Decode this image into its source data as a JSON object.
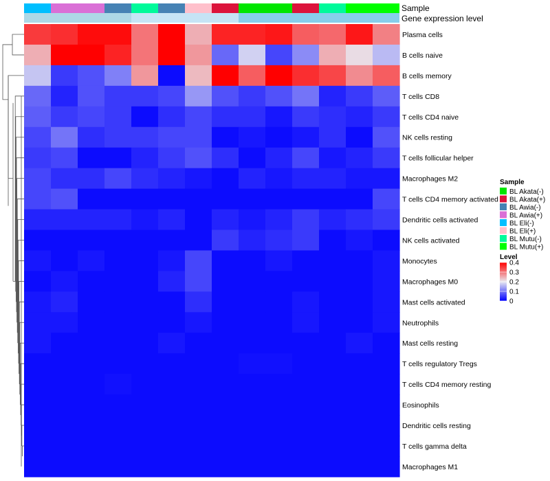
{
  "chart_data": {
    "type": "heatmap",
    "annotation_labels": {
      "sample": "Sample",
      "gene_expression": "Gene expression level"
    },
    "columns": [
      {
        "sample": "BL Eli(-)",
        "expression": "high"
      },
      {
        "sample": "BL Awia(+)",
        "expression": "high"
      },
      {
        "sample": "BL Awia(+)",
        "expression": "high"
      },
      {
        "sample": "BL Awia(-)",
        "expression": "high"
      },
      {
        "sample": "BL Mutu(-)",
        "expression": "low"
      },
      {
        "sample": "BL Awia(-)",
        "expression": "low"
      },
      {
        "sample": "BL Eli(+)",
        "expression": "low"
      },
      {
        "sample": "BL Akata(+)",
        "expression": "low"
      },
      {
        "sample": "BL Akata(-)",
        "expression": "mid"
      },
      {
        "sample": "BL Akata(-)",
        "expression": "mid"
      },
      {
        "sample": "BL Akata(+)",
        "expression": "mid"
      },
      {
        "sample": "BL Mutu(-)",
        "expression": "mid"
      },
      {
        "sample": "BL Mutu(+)",
        "expression": "mid"
      },
      {
        "sample": "BL Mutu(+)",
        "expression": "mid"
      }
    ],
    "rows": [
      "Plasma cells",
      "B cells naive",
      "B cells memory",
      "T cells CD8",
      "T cells CD4 naive",
      "NK cells resting",
      "T cells follicular helper",
      "Macrophages M2",
      "T cells CD4 memory activated",
      "Dendritic cells activated",
      "NK cells activated",
      "Monocytes",
      "Macrophages M0",
      "Mast cells activated",
      "Neutrophils",
      "Mast cells resting",
      "T cells regulatory  Tregs",
      "T cells CD4 memory resting",
      "Eosinophils",
      "Dendritic cells resting",
      "T cells gamma delta",
      "Macrophages M1"
    ],
    "values": [
      [
        0.35,
        0.36,
        0.39,
        0.39,
        0.3,
        0.4,
        0.25,
        0.37,
        0.37,
        0.38,
        0.32,
        0.31,
        0.38,
        0.29
      ],
      [
        0.25,
        0.41,
        0.41,
        0.37,
        0.3,
        0.41,
        0.27,
        0.09,
        0.18,
        0.06,
        0.12,
        0.25,
        0.21,
        0.16
      ],
      [
        0.17,
        0.05,
        0.07,
        0.11,
        0.27,
        0.01,
        0.24,
        0.4,
        0.32,
        0.41,
        0.36,
        0.34,
        0.28,
        0.32
      ],
      [
        0.09,
        0.03,
        0.07,
        0.05,
        0.05,
        0.06,
        0.13,
        0.07,
        0.05,
        0.07,
        0.1,
        0.03,
        0.05,
        0.08
      ],
      [
        0.08,
        0.05,
        0.06,
        0.05,
        0.01,
        0.04,
        0.06,
        0.04,
        0.04,
        0.02,
        0.05,
        0.04,
        0.03,
        0.05
      ],
      [
        0.06,
        0.1,
        0.04,
        0.05,
        0.05,
        0.06,
        0.06,
        0.01,
        0.02,
        0.01,
        0.02,
        0.04,
        0.01,
        0.07
      ],
      [
        0.05,
        0.06,
        0.01,
        0.01,
        0.03,
        0.05,
        0.07,
        0.04,
        0.01,
        0.03,
        0.06,
        0.02,
        0.03,
        0.05
      ],
      [
        0.06,
        0.04,
        0.04,
        0.06,
        0.04,
        0.03,
        0.02,
        0.01,
        0.03,
        0.02,
        0.03,
        0.03,
        0.02,
        0.02
      ],
      [
        0.06,
        0.07,
        0.01,
        0.01,
        0.01,
        0.01,
        0.01,
        0.01,
        0.01,
        0.01,
        0.01,
        0.01,
        0.01,
        0.06
      ],
      [
        0.03,
        0.03,
        0.03,
        0.03,
        0.02,
        0.03,
        0.01,
        0.03,
        0.02,
        0.03,
        0.05,
        0.03,
        0.04,
        0.05
      ],
      [
        0.01,
        0.01,
        0.01,
        0.01,
        0.01,
        0.01,
        0.01,
        0.05,
        0.03,
        0.04,
        0.05,
        0.01,
        0.02,
        0.01
      ],
      [
        0.02,
        0.01,
        0.02,
        0.01,
        0.01,
        0.02,
        0.06,
        0.01,
        0.01,
        0.02,
        0.01,
        0.01,
        0.01,
        0.02
      ],
      [
        0.01,
        0.02,
        0.01,
        0.01,
        0.01,
        0.03,
        0.06,
        0.01,
        0.01,
        0.01,
        0.01,
        0.01,
        0.01,
        0.02
      ],
      [
        0.02,
        0.03,
        0.01,
        0.01,
        0.01,
        0.01,
        0.04,
        0.01,
        0.01,
        0.01,
        0.02,
        0.01,
        0.01,
        0.02
      ],
      [
        0.02,
        0.02,
        0.01,
        0.01,
        0.01,
        0.01,
        0.02,
        0.01,
        0.01,
        0.01,
        0.02,
        0.01,
        0.01,
        0.02
      ],
      [
        0.02,
        0.01,
        0.01,
        0.01,
        0.01,
        0.02,
        0.01,
        0.01,
        0.01,
        0.01,
        0.01,
        0.01,
        0.02,
        0.01
      ],
      [
        0.01,
        0.01,
        0.01,
        0.01,
        0.01,
        0.01,
        0.01,
        0.01,
        0.015,
        0.015,
        0.01,
        0.01,
        0.01,
        0.01
      ],
      [
        0.01,
        0.01,
        0.01,
        0.015,
        0.01,
        0.01,
        0.01,
        0.01,
        0.01,
        0.01,
        0.01,
        0.01,
        0.01,
        0.01
      ],
      [
        0.01,
        0.01,
        0.01,
        0.01,
        0.01,
        0.01,
        0.01,
        0.01,
        0.01,
        0.01,
        0.01,
        0.01,
        0.01,
        0.01
      ],
      [
        0.01,
        0.01,
        0.01,
        0.01,
        0.01,
        0.01,
        0.01,
        0.01,
        0.01,
        0.01,
        0.01,
        0.01,
        0.01,
        0.01
      ],
      [
        0.01,
        0.01,
        0.01,
        0.01,
        0.01,
        0.01,
        0.01,
        0.01,
        0.01,
        0.01,
        0.01,
        0.01,
        0.01,
        0.01
      ],
      [
        0.01,
        0.01,
        0.01,
        0.01,
        0.01,
        0.01,
        0.01,
        0.01,
        0.01,
        0.01,
        0.01,
        0.01,
        0.01,
        0.01
      ]
    ],
    "color_scale": {
      "range": [
        0,
        0.4
      ],
      "low": "#0000ff",
      "mid": "#e8e8f0",
      "high": "#ff0000",
      "midpoint": 0.2
    },
    "sample_legend": {
      "title": "Sample",
      "entries": [
        {
          "label": "BL Akata(-)",
          "color": "#00e600"
        },
        {
          "label": "BL Akata(+)",
          "color": "#dc143c"
        },
        {
          "label": "BL Awia(-)",
          "color": "#4682b4"
        },
        {
          "label": "BL Awia(+)",
          "color": "#da70d6"
        },
        {
          "label": "BL Eli(-)",
          "color": "#00bfff"
        },
        {
          "label": "BL Eli(+)",
          "color": "#ffc0cb"
        },
        {
          "label": "BL Mutu(-)",
          "color": "#00fa9a"
        },
        {
          "label": "BL Mutu(+)",
          "color": "#00ff00"
        }
      ]
    },
    "expression_colors": {
      "high": "#add8e6",
      "low": "#c6e4f5",
      "mid": "#87ceeb"
    },
    "level_legend": {
      "title": "Level",
      "ticks": [
        "0.4",
        "0.3",
        "0.2",
        "0.1",
        "0"
      ],
      "tick_values": [
        0.4,
        0.3,
        0.2,
        0.1,
        0
      ]
    }
  }
}
